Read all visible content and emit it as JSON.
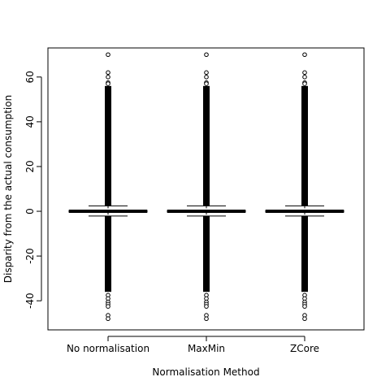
{
  "chart_data": {
    "type": "boxplot",
    "title": "",
    "xlabel": "Normalisation Method",
    "ylabel": "Disparity from the actual consumption",
    "ylim": [
      -53,
      73
    ],
    "y_ticks": [
      -40,
      -20,
      0,
      20,
      40,
      60
    ],
    "grid": false,
    "legend": "none",
    "categories": [
      "No normalisation",
      "MaxMin",
      "ZCore"
    ],
    "boxes": [
      {
        "name": "No normalisation",
        "whisker_low": -2.1,
        "q1": -0.4,
        "median": 0,
        "q3": 0.4,
        "whisker_high": 2.4,
        "outliers_dense_high": [
          2.4,
          56
        ],
        "outliers_dense_low": [
          -36,
          -2.1
        ],
        "outliers_sparse": [
          70,
          62,
          60,
          57.5,
          57,
          -37.5,
          -39,
          -40.5,
          -41.5,
          -42.5,
          -46.5,
          -48
        ]
      },
      {
        "name": "MaxMin",
        "whisker_low": -2.1,
        "q1": -0.4,
        "median": 0,
        "q3": 0.4,
        "whisker_high": 2.4,
        "outliers_dense_high": [
          2.4,
          56
        ],
        "outliers_dense_low": [
          -36,
          -2.1
        ],
        "outliers_sparse": [
          70,
          62,
          60,
          57.5,
          57,
          -37.5,
          -39,
          -40.5,
          -41.5,
          -42.5,
          -46.5,
          -48
        ]
      },
      {
        "name": "ZCore",
        "whisker_low": -2.1,
        "q1": -0.4,
        "median": 0,
        "q3": 0.4,
        "whisker_high": 2.4,
        "outliers_dense_high": [
          2.4,
          56
        ],
        "outliers_dense_low": [
          -36,
          -2.1
        ],
        "outliers_sparse": [
          70,
          62,
          60,
          57.5,
          57,
          -37.5,
          -39,
          -40.5,
          -41.5,
          -42.5,
          -46.5,
          -48
        ]
      }
    ]
  }
}
